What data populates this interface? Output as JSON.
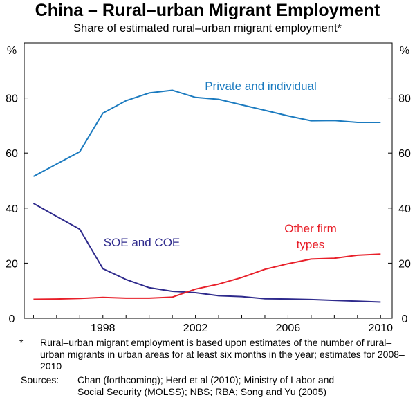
{
  "chart_data": {
    "type": "line",
    "title": "China – Rural–urban Migrant Employment",
    "subtitle": "Share of estimated rural–urban migrant employment*",
    "ylabel_left": "%",
    "ylabel_right": "%",
    "ylim": [
      0,
      100
    ],
    "yticks": [
      0,
      20,
      40,
      60,
      80
    ],
    "xlim": [
      1994.6,
      2010.5
    ],
    "xticks": [
      1998,
      2002,
      2006,
      2010
    ],
    "grid": false,
    "x": [
      1995,
      1996,
      1997,
      1998,
      1999,
      2000,
      2001,
      2002,
      2003,
      2004,
      2005,
      2006,
      2007,
      2008,
      2009,
      2010
    ],
    "series": [
      {
        "name": "Private and individual",
        "color": "#1a7abf",
        "values": [
          51.5,
          56,
          60.5,
          74.5,
          79,
          81.8,
          82.8,
          80.2,
          79.5,
          77.5,
          75.5,
          73.5,
          71.7,
          71.8,
          71.1,
          71.1
        ]
      },
      {
        "name": "SOE and COE",
        "color": "#2e2a8c",
        "values": [
          41.7,
          37,
          32.3,
          18,
          14.1,
          11.1,
          9.8,
          9.3,
          8.2,
          7.9,
          7.1,
          7,
          6.8,
          6.5,
          6.2,
          5.9
        ]
      },
      {
        "name": "Other firm types",
        "color": "#e8202a",
        "values": [
          6.9,
          7,
          7.2,
          7.6,
          7.3,
          7.3,
          7.7,
          10.6,
          12.4,
          14.8,
          17.8,
          19.8,
          21.5,
          21.8,
          22.9,
          23.3
        ]
      }
    ],
    "annotations": {
      "private": "Private and individual",
      "soe": "SOE and COE",
      "other_line1": "Other firm",
      "other_line2": "types"
    }
  },
  "footnote": {
    "marker": "*",
    "text": "Rural–urban migrant employment is based upon estimates of the number of rural–urban migrants in urban areas for at least six months in the year; estimates for 2008–2010"
  },
  "sources": {
    "label": "Sources:",
    "line1": "Chan (forthcoming); Herd et al (2010); Ministry of Labor and",
    "line2": "Social Security (MOLSS); NBS; RBA; Song and Yu (2005)"
  }
}
